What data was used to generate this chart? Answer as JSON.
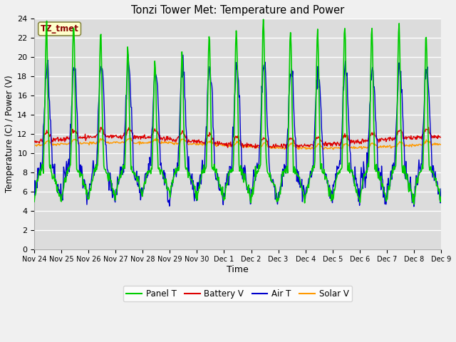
{
  "title": "Tonzi Tower Met: Temperature and Power",
  "xlabel": "Time",
  "ylabel": "Temperature (C) / Power (V)",
  "ylim": [
    0,
    24
  ],
  "bg_color": "#dcdcdc",
  "grid_color": "#ffffff",
  "legend_entries": [
    "Panel T",
    "Battery V",
    "Air T",
    "Solar V"
  ],
  "legend_colors": [
    "#00dd00",
    "#dd0000",
    "#0000dd",
    "#ff9900"
  ],
  "xtick_labels": [
    "Nov 24",
    "Nov 25",
    "Nov 26",
    "Nov 27",
    "Nov 28",
    "Nov 29",
    "Nov 30",
    "Dec 1",
    "Dec 2",
    "Dec 3",
    "Dec 4",
    "Dec 5",
    "Dec 6",
    "Dec 7",
    "Dec 8",
    "Dec 9"
  ],
  "annotation_text": "TZ_tmet",
  "annotation_color": "#880000",
  "annotation_bg": "#ffffcc",
  "annotation_border": "#888844"
}
